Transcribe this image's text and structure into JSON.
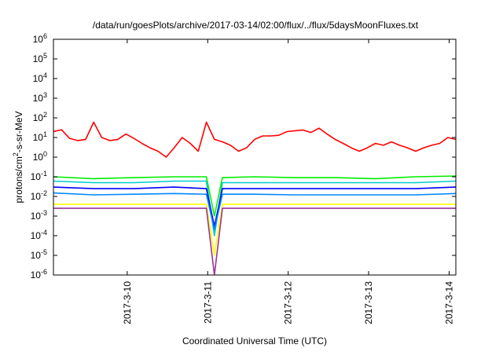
{
  "chart_data": {
    "type": "line",
    "title": "/data/run/goesPlots/archive/2017-03-14/02:00/flux/../flux/5daysMoonFluxes.txt",
    "xlabel": "Coordinated Universal Time (UTC)",
    "ylabel": "protons/cm2-s-sr-MeV",
    "ylabel_base": "protons/cm",
    "ylabel_sup": "2",
    "ylabel_rest": "-s-sr-MeV",
    "y_scale": "log",
    "ylim": [
      1e-06,
      1000000.0
    ],
    "y_ticks": [
      {
        "value": 1e-06,
        "base": "10",
        "exp": "-6"
      },
      {
        "value": 1e-05,
        "base": "10",
        "exp": "-5"
      },
      {
        "value": 0.0001,
        "base": "10",
        "exp": "-4"
      },
      {
        "value": 0.001,
        "base": "10",
        "exp": "-3"
      },
      {
        "value": 0.01,
        "base": "10",
        "exp": "-2"
      },
      {
        "value": 0.1,
        "base": "10",
        "exp": "-1"
      },
      {
        "value": 1.0,
        "base": "10",
        "exp": "0"
      },
      {
        "value": 10.0,
        "base": "10",
        "exp": "1"
      },
      {
        "value": 100.0,
        "base": "10",
        "exp": "2"
      },
      {
        "value": 1000.0,
        "base": "10",
        "exp": "3"
      },
      {
        "value": 10000.0,
        "base": "10",
        "exp": "4"
      },
      {
        "value": 100000.0,
        "base": "10",
        "exp": "5"
      },
      {
        "value": 1000000.0,
        "base": "10",
        "exp": "6"
      }
    ],
    "xlim": [
      "2017-03-09T02:00",
      "2017-03-14T02:00"
    ],
    "x_ticks": [
      "2017-3-10",
      "2017-3-11",
      "2017-3-12",
      "2017-3-13",
      "2017-3-14"
    ],
    "x_tick_dates": [
      "2017-03-10T00:00",
      "2017-03-11T00:00",
      "2017-03-12T00:00",
      "2017-03-13T00:00",
      "2017-03-14T00:00"
    ],
    "grid": false,
    "legend": "none",
    "series": [
      {
        "color": "#ff0000",
        "values": [
          [
            0,
            20
          ],
          [
            0.1,
            25
          ],
          [
            0.2,
            9
          ],
          [
            0.3,
            7
          ],
          [
            0.4,
            8
          ],
          [
            0.5,
            60
          ],
          [
            0.6,
            10
          ],
          [
            0.7,
            7
          ],
          [
            0.8,
            8
          ],
          [
            0.9,
            15
          ],
          [
            1.0,
            9
          ],
          [
            1.1,
            5
          ],
          [
            1.2,
            3
          ],
          [
            1.3,
            2
          ],
          [
            1.4,
            1
          ],
          [
            1.5,
            3
          ],
          [
            1.6,
            10
          ],
          [
            1.7,
            5
          ],
          [
            1.8,
            2
          ],
          [
            1.9,
            60
          ],
          [
            2.0,
            8
          ],
          [
            2.1,
            6
          ],
          [
            2.2,
            4
          ],
          [
            2.3,
            2
          ],
          [
            2.4,
            3
          ],
          [
            2.5,
            8
          ],
          [
            2.6,
            12
          ],
          [
            2.7,
            12
          ],
          [
            2.8,
            13
          ],
          [
            2.9,
            20
          ],
          [
            3.0,
            22
          ],
          [
            3.1,
            24
          ],
          [
            3.2,
            18
          ],
          [
            3.3,
            30
          ],
          [
            3.4,
            15
          ],
          [
            3.5,
            8
          ],
          [
            3.6,
            5
          ],
          [
            3.7,
            3
          ],
          [
            3.8,
            2
          ],
          [
            3.9,
            3
          ],
          [
            4.0,
            5
          ],
          [
            4.1,
            4
          ],
          [
            4.2,
            6
          ],
          [
            4.3,
            4
          ],
          [
            4.4,
            3
          ],
          [
            4.5,
            2
          ],
          [
            4.6,
            3
          ],
          [
            4.7,
            4
          ],
          [
            4.8,
            5
          ],
          [
            4.9,
            10
          ],
          [
            5.0,
            8
          ]
        ]
      },
      {
        "color": "#00ee00",
        "values": [
          [
            0,
            0.1
          ],
          [
            0.5,
            0.08
          ],
          [
            1.0,
            0.09
          ],
          [
            1.5,
            0.1
          ],
          [
            1.9,
            0.1
          ],
          [
            2.0,
            0.001
          ],
          [
            2.1,
            0.09
          ],
          [
            2.5,
            0.1
          ],
          [
            3.0,
            0.09
          ],
          [
            3.5,
            0.09
          ],
          [
            4.0,
            0.08
          ],
          [
            4.5,
            0.1
          ],
          [
            5.0,
            0.11
          ]
        ]
      },
      {
        "color": "#00cccc",
        "values": [
          [
            0,
            0.06
          ],
          [
            0.5,
            0.05
          ],
          [
            1.0,
            0.05
          ],
          [
            1.5,
            0.06
          ],
          [
            1.9,
            0.06
          ],
          [
            2.0,
            0.0001
          ],
          [
            2.1,
            0.05
          ],
          [
            2.5,
            0.05
          ],
          [
            3.0,
            0.05
          ],
          [
            3.5,
            0.05
          ],
          [
            4.0,
            0.05
          ],
          [
            4.5,
            0.05
          ],
          [
            5.0,
            0.06
          ]
        ]
      },
      {
        "color": "#0000ff",
        "values": [
          [
            0,
            0.03
          ],
          [
            0.5,
            0.025
          ],
          [
            1.0,
            0.025
          ],
          [
            1.5,
            0.03
          ],
          [
            1.9,
            0.025
          ],
          [
            2.0,
            0.0003
          ],
          [
            2.1,
            0.025
          ],
          [
            2.5,
            0.025
          ],
          [
            3.0,
            0.025
          ],
          [
            3.5,
            0.025
          ],
          [
            4.0,
            0.025
          ],
          [
            4.5,
            0.025
          ],
          [
            5.0,
            0.03
          ]
        ]
      },
      {
        "color": "#0088ff",
        "values": [
          [
            0,
            0.015
          ],
          [
            0.5,
            0.012
          ],
          [
            1.0,
            0.013
          ],
          [
            1.5,
            0.014
          ],
          [
            1.9,
            0.013
          ],
          [
            2.0,
            0.0002
          ],
          [
            2.1,
            0.013
          ],
          [
            2.5,
            0.013
          ],
          [
            3.0,
            0.012
          ],
          [
            3.5,
            0.012
          ],
          [
            4.0,
            0.012
          ],
          [
            4.5,
            0.012
          ],
          [
            5.0,
            0.014
          ]
        ]
      },
      {
        "color": "#ffff00",
        "values": [
          [
            0,
            0.004
          ],
          [
            0.5,
            0.004
          ],
          [
            1.0,
            0.004
          ],
          [
            1.5,
            0.004
          ],
          [
            1.9,
            0.004
          ],
          [
            2.0,
            1e-05
          ],
          [
            2.1,
            0.004
          ],
          [
            2.5,
            0.004
          ],
          [
            3.0,
            0.004
          ],
          [
            3.5,
            0.004
          ],
          [
            4.0,
            0.004
          ],
          [
            4.5,
            0.004
          ],
          [
            5.0,
            0.004
          ]
        ]
      },
      {
        "color": "#993399",
        "values": [
          [
            0,
            0.0025
          ],
          [
            0.5,
            0.0025
          ],
          [
            1.0,
            0.0025
          ],
          [
            1.5,
            0.0025
          ],
          [
            1.9,
            0.0025
          ],
          [
            2.0,
            1e-06
          ],
          [
            2.1,
            0.0025
          ],
          [
            2.5,
            0.0025
          ],
          [
            3.0,
            0.0025
          ],
          [
            3.5,
            0.0025
          ],
          [
            4.0,
            0.0025
          ],
          [
            4.5,
            0.0025
          ],
          [
            5.0,
            0.0025
          ]
        ]
      }
    ]
  }
}
